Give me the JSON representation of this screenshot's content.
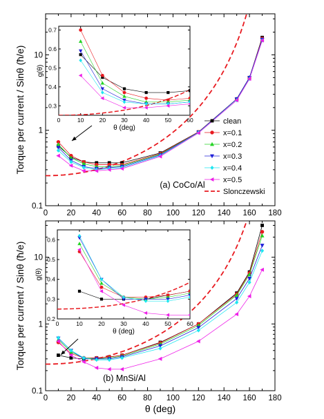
{
  "figure": {
    "legend": {
      "entries": [
        "clean",
        "x=0.1",
        "x=0.2",
        "x=0.3",
        "x=0.4",
        "x=0.5",
        "Slonczewski"
      ]
    }
  },
  "series_styles": [
    {
      "name": "clean",
      "color": "#000000",
      "marker": "square"
    },
    {
      "name": "x=0.1",
      "color": "#e8191f",
      "marker": "circle"
    },
    {
      "name": "x=0.2",
      "color": "#24d424",
      "marker": "triangle-up"
    },
    {
      "name": "x=0.3",
      "color": "#1f1fd8",
      "marker": "triangle-down"
    },
    {
      "name": "x=0.4",
      "color": "#1ee6f0",
      "marker": "diamond"
    },
    {
      "name": "x=0.5",
      "color": "#ee1ee8",
      "marker": "triangle-left"
    },
    {
      "name": "Slonczewski",
      "color": "#e8191f",
      "line": "dashed"
    }
  ],
  "chart_data": [
    {
      "type": "line",
      "panel_label": "(a) CoCo/Al",
      "xlabel": "",
      "ylabel": "Torque per current / Sinθ (ħ/e)",
      "xlim": [
        0,
        180
      ],
      "ylim": [
        0.1,
        35
      ],
      "y_scale": "log",
      "x_ticks": [
        0,
        20,
        40,
        60,
        80,
        100,
        120,
        140,
        160,
        180
      ],
      "y_ticks": [
        0.1,
        1,
        10
      ],
      "grid": false,
      "x": [
        10,
        20,
        30,
        40,
        50,
        60,
        90,
        120,
        150,
        160,
        170
      ],
      "series": [
        {
          "name": "clean",
          "values": [
            0.62,
            0.44,
            0.38,
            0.37,
            0.37,
            0.37,
            0.5,
            0.95,
            2.6,
            5.0,
            17
          ]
        },
        {
          "name": "x=0.1",
          "values": [
            0.7,
            0.46,
            0.38,
            0.35,
            0.35,
            0.35,
            0.49,
            0.95,
            2.6,
            5.0,
            16.5
          ]
        },
        {
          "name": "x=0.2",
          "values": [
            0.65,
            0.43,
            0.36,
            0.33,
            0.33,
            0.34,
            0.48,
            0.94,
            2.6,
            5.0,
            16
          ]
        },
        {
          "name": "x=0.3",
          "values": [
            0.59,
            0.4,
            0.33,
            0.31,
            0.32,
            0.33,
            0.47,
            0.94,
            2.6,
            5.0,
            16
          ]
        },
        {
          "name": "x=0.4",
          "values": [
            0.54,
            0.38,
            0.32,
            0.3,
            0.31,
            0.32,
            0.46,
            0.93,
            2.5,
            4.8,
            15.5
          ]
        },
        {
          "name": "x=0.5",
          "values": [
            0.46,
            0.34,
            0.29,
            0.29,
            0.3,
            0.31,
            0.45,
            0.92,
            2.5,
            4.8,
            15.5
          ]
        }
      ],
      "reference_curve": {
        "name": "Slonczewski",
        "formula": "0.25 * ((1 + cos(theta)) / 2)^(-1.5)"
      },
      "inset": {
        "xlabel": "θ (deg)",
        "ylabel": "g(θ)",
        "xlim": [
          0,
          60
        ],
        "ylim": [
          0.25,
          0.72
        ],
        "x_ticks": [
          0,
          10,
          20,
          30,
          40,
          50,
          60
        ],
        "y_ticks": [
          0.3,
          0.4,
          0.5,
          0.6,
          0.7
        ],
        "x": [
          10,
          20,
          30,
          40,
          50,
          60
        ],
        "series": [
          {
            "name": "clean",
            "values": [
              0.57,
              0.45,
              0.39,
              0.37,
              0.37,
              0.38
            ]
          },
          {
            "name": "x=0.1",
            "values": [
              0.7,
              0.46,
              0.37,
              0.34,
              0.33,
              0.34
            ]
          },
          {
            "name": "x=0.2",
            "values": [
              0.64,
              0.42,
              0.35,
              0.32,
              0.32,
              0.33
            ]
          },
          {
            "name": "x=0.3",
            "values": [
              0.59,
              0.39,
              0.33,
              0.31,
              0.31,
              0.32
            ]
          },
          {
            "name": "x=0.4",
            "values": [
              0.54,
              0.37,
              0.32,
              0.31,
              0.31,
              0.32
            ]
          },
          {
            "name": "x=0.5",
            "values": [
              0.46,
              0.34,
              0.29,
              0.29,
              0.3,
              0.31
            ]
          }
        ]
      }
    },
    {
      "type": "line",
      "panel_label": "(b) MnSi/Al",
      "xlabel": "θ (deg)",
      "ylabel": "Torque per current / Sinθ (ħ/e)",
      "xlim": [
        0,
        180
      ],
      "ylim": [
        0.1,
        35
      ],
      "y_scale": "log",
      "x_ticks": [
        0,
        20,
        40,
        60,
        80,
        100,
        120,
        140,
        160,
        180
      ],
      "y_ticks": [
        0.1,
        1,
        10
      ],
      "grid": false,
      "x": [
        10,
        20,
        30,
        40,
        50,
        60,
        90,
        120,
        150,
        160,
        170
      ],
      "series": [
        {
          "name": "clean",
          "values": [
            0.34,
            0.31,
            0.3,
            0.31,
            0.32,
            0.34,
            0.53,
            1.0,
            2.9,
            6.0,
            30
          ]
        },
        {
          "name": "x=0.1",
          "values": [
            0.53,
            0.36,
            0.31,
            0.31,
            0.32,
            0.34,
            0.52,
            1.0,
            2.8,
            5.8,
            24
          ]
        },
        {
          "name": "x=0.2",
          "values": [
            0.58,
            0.38,
            0.31,
            0.3,
            0.31,
            0.33,
            0.5,
            0.95,
            2.7,
            5.5,
            21
          ]
        },
        {
          "name": "x=0.3",
          "values": [
            0.61,
            0.4,
            0.3,
            0.3,
            0.3,
            0.32,
            0.47,
            0.88,
            2.4,
            4.8,
            15
          ]
        },
        {
          "name": "x=0.4",
          "values": [
            0.62,
            0.4,
            0.31,
            0.29,
            0.29,
            0.31,
            0.43,
            0.8,
            2.1,
            4.2,
            12.5
          ]
        },
        {
          "name": "x=0.5",
          "values": [
            0.55,
            0.34,
            0.27,
            0.22,
            0.21,
            0.21,
            0.3,
            0.55,
            1.4,
            2.6,
            6.5
          ]
        }
      ],
      "reference_curve": {
        "name": "Slonczewski",
        "formula": "0.25 * ((1 + cos(theta)) / 2)^(-1.5)"
      },
      "inset": {
        "xlabel": "θ (deg)",
        "ylabel": "g(θ)",
        "xlim": [
          0,
          60
        ],
        "ylim": [
          0.2,
          0.65
        ],
        "x_ticks": [
          0,
          10,
          20,
          30,
          40,
          50,
          60
        ],
        "y_ticks": [
          0.2,
          0.3,
          0.4,
          0.5,
          0.6
        ],
        "x": [
          10,
          20,
          30,
          40,
          50,
          60
        ],
        "series": [
          {
            "name": "clean",
            "values": [
              0.34,
              0.3,
              0.3,
              0.3,
              0.32,
              0.34
            ]
          },
          {
            "name": "x=0.1",
            "values": [
              0.54,
              0.36,
              0.31,
              0.31,
              0.32,
              0.34
            ]
          },
          {
            "name": "x=0.2",
            "values": [
              0.58,
              0.38,
              0.31,
              0.3,
              0.31,
              0.33
            ]
          },
          {
            "name": "x=0.3",
            "values": [
              0.61,
              0.4,
              0.3,
              0.3,
              0.3,
              0.32
            ]
          },
          {
            "name": "x=0.4",
            "values": [
              0.62,
              0.4,
              0.31,
              0.29,
              0.29,
              0.31
            ]
          },
          {
            "name": "x=0.5",
            "values": [
              0.55,
              0.34,
              0.27,
              0.23,
              0.22,
              0.22
            ]
          }
        ]
      }
    }
  ]
}
